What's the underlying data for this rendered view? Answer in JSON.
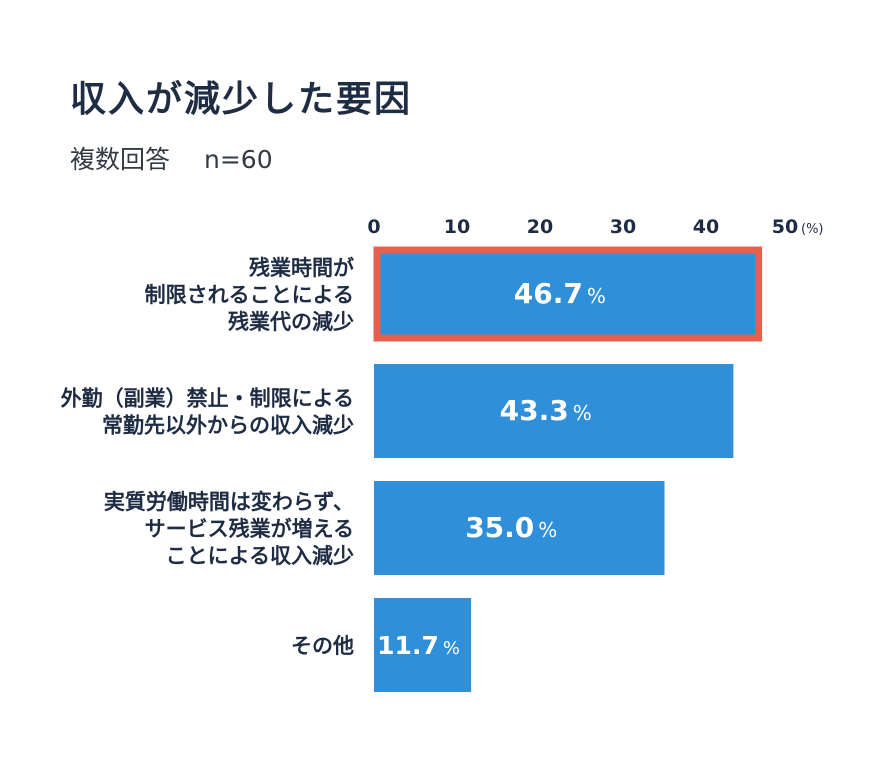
{
  "header": {
    "title": "収入が減少した要因",
    "subtitle_left": "複数回答",
    "subtitle_right": "n=60"
  },
  "colors": {
    "bar": "#2f8fd8",
    "highlight_border": "#e8604c",
    "text_dark": "#1f2d44",
    "value_text": "#ffffff"
  },
  "chart_data": {
    "type": "bar",
    "orientation": "horizontal",
    "xlim": [
      0,
      50
    ],
    "x_ticks": [
      "0",
      "10",
      "20",
      "30",
      "40",
      "50"
    ],
    "unit_label": "(%)",
    "value_unit": "%",
    "grid": false,
    "categories": [
      [
        "残業時間が",
        "制限されることによる",
        "残業代の減少"
      ],
      [
        "外勤（副業）禁止・制限による",
        "常勤先以外からの収入減少"
      ],
      [
        "実質労働時間は変わらず、",
        "サービス残業が増える",
        "ことによる収入減少"
      ],
      [
        "その他"
      ]
    ],
    "values": [
      46.7,
      43.3,
      35.0,
      11.7
    ],
    "value_labels": [
      "46.7",
      "43.3",
      "35.0",
      "11.7"
    ],
    "highlighted_index": 0
  }
}
